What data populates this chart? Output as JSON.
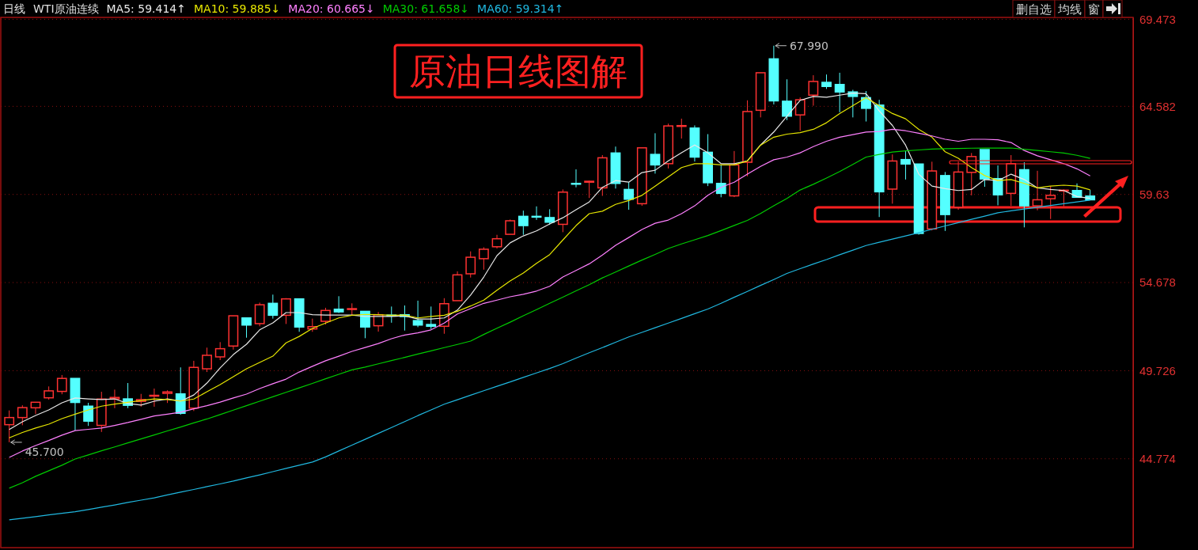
{
  "chart_data": {
    "type": "candlestick",
    "title": "WTI原油连续",
    "subtitle": "日线",
    "categories": [
      null,
      null,
      null,
      null,
      null,
      null,
      null,
      null,
      null,
      null,
      null,
      null,
      null,
      null,
      null,
      null,
      null,
      null,
      null,
      null,
      null,
      null,
      null,
      null,
      null,
      null,
      null,
      null,
      null,
      null,
      null,
      null,
      null,
      null,
      null,
      null,
      null,
      null,
      null,
      null,
      null,
      null,
      null,
      null,
      null,
      null,
      null,
      null,
      null,
      null,
      null,
      null,
      null,
      null,
      null,
      null,
      null,
      null,
      null,
      null,
      null,
      null,
      null,
      null,
      null,
      null,
      null,
      null,
      null,
      null,
      null,
      null,
      null,
      null,
      null,
      null,
      null,
      null,
      null,
      null,
      null,
      null,
      null
    ],
    "ohlc": [
      [
        46.69,
        47.49,
        45.7,
        47.09
      ],
      [
        47.09,
        47.78,
        46.66,
        47.65
      ],
      [
        47.64,
        47.95,
        47.29,
        47.95
      ],
      [
        48.2,
        48.84,
        48.1,
        48.59
      ],
      [
        48.56,
        49.48,
        48.4,
        49.29
      ],
      [
        49.29,
        49.29,
        46.37,
        47.94
      ],
      [
        47.73,
        47.92,
        46.62,
        46.89
      ],
      [
        46.65,
        48.54,
        46.28,
        48.13
      ],
      [
        48.14,
        48.66,
        47.62,
        48.22
      ],
      [
        48.14,
        49.03,
        47.62,
        47.78
      ],
      [
        48.0,
        48.42,
        47.7,
        48.1
      ],
      [
        48.3,
        48.72,
        47.7,
        48.34
      ],
      [
        48.45,
        48.62,
        47.91,
        48.53
      ],
      [
        48.42,
        49.91,
        47.25,
        47.33
      ],
      [
        47.62,
        50.28,
        47.46,
        49.91
      ],
      [
        49.83,
        51.02,
        49.65,
        50.59
      ],
      [
        50.5,
        51.33,
        50.32,
        50.96
      ],
      [
        51.11,
        52.81,
        50.91,
        52.81
      ],
      [
        52.69,
        52.69,
        51.58,
        52.29
      ],
      [
        52.37,
        53.55,
        52.22,
        53.43
      ],
      [
        53.51,
        54.0,
        52.65,
        52.84
      ],
      [
        52.84,
        53.8,
        52.35,
        53.76
      ],
      [
        53.76,
        53.76,
        51.91,
        52.18
      ],
      [
        52.07,
        52.65,
        51.91,
        52.2
      ],
      [
        52.5,
        53.26,
        52.32,
        53.11
      ],
      [
        53.18,
        53.91,
        52.96,
        53.03
      ],
      [
        53.17,
        53.51,
        52.84,
        53.21
      ],
      [
        53.06,
        53.06,
        51.55,
        52.18
      ],
      [
        52.25,
        53.02,
        51.92,
        52.87
      ],
      [
        52.85,
        53.33,
        52.42,
        52.81
      ],
      [
        52.87,
        53.39,
        51.98,
        52.77
      ],
      [
        52.54,
        53.66,
        52.17,
        52.29
      ],
      [
        52.32,
        53.33,
        52.06,
        52.22
      ],
      [
        52.22,
        53.8,
        51.8,
        53.49
      ],
      [
        53.66,
        55.31,
        53.66,
        55.11
      ],
      [
        55.17,
        56.43,
        54.96,
        56.1
      ],
      [
        56.02,
        56.66,
        55.4,
        56.55
      ],
      [
        56.69,
        57.36,
        56.59,
        57.14
      ],
      [
        57.39,
        58.22,
        57.39,
        58.15
      ],
      [
        58.4,
        58.72,
        57.36,
        57.88
      ],
      [
        58.4,
        58.96,
        58.2,
        58.37
      ],
      [
        58.33,
        58.8,
        57.92,
        58.07
      ],
      [
        57.95,
        59.91,
        57.51,
        59.76
      ],
      [
        60.25,
        61.04,
        60.03,
        60.22
      ],
      [
        60.32,
        60.4,
        59.43,
        60.37
      ],
      [
        60.0,
        61.84,
        59.55,
        61.69
      ],
      [
        61.96,
        62.32,
        59.96,
        60.25
      ],
      [
        59.91,
        60.32,
        58.77,
        59.36
      ],
      [
        59.11,
        62.25,
        58.99,
        62.25
      ],
      [
        61.88,
        63.07,
        60.8,
        61.29
      ],
      [
        61.36,
        63.61,
        61.09,
        63.48
      ],
      [
        63.46,
        63.89,
        62.77,
        63.5
      ],
      [
        63.36,
        63.51,
        61.48,
        61.73
      ],
      [
        62.0,
        63.02,
        60.1,
        60.29
      ],
      [
        60.25,
        61.29,
        59.47,
        59.69
      ],
      [
        59.55,
        62.07,
        59.48,
        61.29
      ],
      [
        61.44,
        64.92,
        60.65,
        64.29
      ],
      [
        64.36,
        66.47,
        63.96,
        66.47
      ],
      [
        67.25,
        67.99,
        64.69,
        64.89
      ],
      [
        64.87,
        66.1,
        63.81,
        64.03
      ],
      [
        64.1,
        65.08,
        63.21,
        64.95
      ],
      [
        65.21,
        66.33,
        64.62,
        65.98
      ],
      [
        65.93,
        66.37,
        65.56,
        65.7
      ],
      [
        65.81,
        66.47,
        64.25,
        65.39
      ],
      [
        65.39,
        65.51,
        63.96,
        65.14
      ],
      [
        65.07,
        65.44,
        63.73,
        64.47
      ],
      [
        64.65,
        64.95,
        58.36,
        59.78
      ],
      [
        59.93,
        61.88,
        59.11,
        61.51
      ],
      [
        61.59,
        62.11,
        60.47,
        61.34
      ],
      [
        61.34,
        61.34,
        57.37,
        57.44
      ],
      [
        57.69,
        61.47,
        57.61,
        60.95
      ],
      [
        60.69,
        60.89,
        57.58,
        58.5
      ],
      [
        58.91,
        61.48,
        58.77,
        60.89
      ],
      [
        60.87,
        61.96,
        59.58,
        61.76
      ],
      [
        62.15,
        62.15,
        60.06,
        60.5
      ],
      [
        60.52,
        61.26,
        59.02,
        59.61
      ],
      [
        59.69,
        61.84,
        58.99,
        61.36
      ],
      [
        61.02,
        61.44,
        57.78,
        58.99
      ],
      [
        58.99,
        60.96,
        58.74,
        59.33
      ],
      [
        59.39,
        60.1,
        58.25,
        59.58
      ],
      [
        59.83,
        59.91,
        58.96,
        59.87
      ],
      [
        59.85,
        60.25,
        59.47,
        59.47
      ],
      [
        59.54,
        59.88,
        59.33,
        59.33
      ]
    ],
    "colors": [
      "#ff3232",
      "#ff3232",
      "#ff3232",
      "#ff3232",
      "#ff3232",
      "#54ffff",
      "#54ffff",
      "#ff3232",
      "#ff3232",
      "#54ffff",
      "#ff3232",
      "#ff3232",
      "#ff3232",
      "#54ffff",
      "#ff3232",
      "#ff3232",
      "#ff3232",
      "#ff3232",
      "#54ffff",
      "#ff3232",
      "#54ffff",
      "#ff3232",
      "#54ffff",
      "#ff3232",
      "#ff3232",
      "#54ffff",
      "#ff3232",
      "#54ffff",
      "#ff3232",
      "#54ffff",
      "#54ffff",
      "#54ffff",
      "#54ffff",
      "#ff3232",
      "#ff3232",
      "#ff3232",
      "#ff3232",
      "#ff3232",
      "#ff3232",
      "#54ffff",
      "#54ffff",
      "#54ffff",
      "#ff3232",
      "#54ffff",
      "#ff3232",
      "#ff3232",
      "#54ffff",
      "#54ffff",
      "#ff3232",
      "#54ffff",
      "#ff3232",
      "#ff3232",
      "#54ffff",
      "#54ffff",
      "#54ffff",
      "#ff3232",
      "#ff3232",
      "#ff3232",
      "#54ffff",
      "#54ffff",
      "#ff3232",
      "#ff3232",
      "#54ffff",
      "#54ffff",
      "#54ffff",
      "#54ffff",
      "#54ffff",
      "#ff3232",
      "#54ffff",
      "#54ffff",
      "#ff3232",
      "#54ffff",
      "#ff3232",
      "#ff3232",
      "#54ffff",
      "#54ffff",
      "#ff3232",
      "#54ffff",
      "#ff3232",
      "#ff3232",
      "#ff3232",
      "#54ffff",
      "#54ffff"
    ],
    "series": [
      {
        "name": "MA5: 59.414↑",
        "type": "line",
        "color": "#e8e8e8",
        "values": [
          46.42,
          46.85,
          47.21,
          47.52,
          47.92,
          48.19,
          48.14,
          48.1,
          48.14,
          47.88,
          47.79,
          48.01,
          48.14,
          48.01,
          48.36,
          49.03,
          49.88,
          50.63,
          51.21,
          52.02,
          52.41,
          52.99,
          52.99,
          52.87,
          52.85,
          52.85,
          52.85,
          52.77,
          52.77,
          52.77,
          52.81,
          52.63,
          52.63,
          52.69,
          53.13,
          53.97,
          54.99,
          56.19,
          56.91,
          57.3,
          57.58,
          57.97,
          58.32,
          58.77,
          59.21,
          60.03,
          60.41,
          60.32,
          60.86,
          60.99,
          61.52,
          61.97,
          62.41,
          61.97,
          61.36,
          61.36,
          61.52,
          62.41,
          63.14,
          64.03,
          64.92,
          65.14,
          65.09,
          65.21,
          65.33,
          65.29,
          64.33,
          63.51,
          62.4,
          60.77,
          60.1,
          59.96,
          59.85,
          59.91,
          60.47,
          60.41,
          60.77,
          60.47,
          60.0,
          59.91,
          59.85,
          59.51,
          59.41
        ]
      },
      {
        "name": "MA10: 59.885↓",
        "type": "line",
        "color": "#e6e600",
        "values": [
          45.95,
          46.25,
          46.5,
          46.72,
          47.03,
          47.28,
          47.52,
          47.73,
          47.85,
          47.95,
          48.05,
          48.14,
          48.1,
          48.02,
          48.13,
          48.54,
          48.94,
          49.39,
          49.83,
          50.19,
          50.54,
          51.29,
          51.65,
          52.1,
          52.4,
          52.69,
          52.84,
          52.89,
          52.87,
          52.84,
          52.85,
          52.69,
          52.77,
          52.84,
          53.06,
          53.36,
          53.69,
          54.25,
          54.77,
          55.21,
          55.76,
          56.25,
          57.07,
          57.88,
          58.55,
          58.69,
          59.07,
          59.29,
          59.58,
          60.1,
          60.62,
          61.14,
          61.36,
          61.36,
          61.29,
          61.29,
          61.51,
          62.4,
          62.85,
          63.02,
          63.1,
          63.29,
          63.66,
          64.18,
          64.62,
          65.07,
          64.62,
          64.18,
          63.88,
          63.29,
          62.85,
          62.03,
          61.66,
          61.14,
          60.69,
          60.41,
          60.47,
          60.25,
          60.0,
          60.1,
          60.15,
          60.1,
          59.89
        ]
      },
      {
        "name": "MA20: 60.665↓",
        "type": "line",
        "color": "#ff80ff",
        "values": [
          44.85,
          45.21,
          45.52,
          45.8,
          46.1,
          46.36,
          46.43,
          46.5,
          46.65,
          46.81,
          46.99,
          47.18,
          47.28,
          47.39,
          47.58,
          47.76,
          47.96,
          48.19,
          48.41,
          48.72,
          48.99,
          49.25,
          49.65,
          49.97,
          50.28,
          50.54,
          50.81,
          51.03,
          51.25,
          51.52,
          51.73,
          51.85,
          52.02,
          52.4,
          52.91,
          53.21,
          53.51,
          53.69,
          53.88,
          54.02,
          54.2,
          54.47,
          54.99,
          55.36,
          55.73,
          56.23,
          56.77,
          57.21,
          57.66,
          58.01,
          58.19,
          58.55,
          58.99,
          59.58,
          60.03,
          60.32,
          60.77,
          61.21,
          61.58,
          61.73,
          61.97,
          62.32,
          62.62,
          62.85,
          62.99,
          63.14,
          63.17,
          63.29,
          63.21,
          63.07,
          62.92,
          62.73,
          62.62,
          62.73,
          62.73,
          62.7,
          62.55,
          62.1,
          61.8,
          61.58,
          61.36,
          61.07,
          60.67
        ]
      },
      {
        "name": "MA30: 61.658↓",
        "type": "line",
        "color": "#00cc00",
        "values": [
          43.12,
          43.43,
          43.79,
          44.1,
          44.41,
          44.76,
          44.99,
          45.22,
          45.44,
          45.67,
          45.89,
          46.11,
          46.34,
          46.56,
          46.79,
          47.01,
          47.26,
          47.51,
          47.76,
          48.01,
          48.26,
          48.51,
          48.76,
          49.01,
          49.27,
          49.52,
          49.77,
          49.93,
          50.11,
          50.29,
          50.47,
          50.66,
          50.84,
          51.02,
          51.2,
          51.39,
          51.76,
          52.11,
          52.45,
          52.81,
          53.16,
          53.51,
          53.86,
          54.21,
          54.56,
          54.94,
          55.27,
          55.61,
          55.94,
          56.26,
          56.59,
          56.85,
          57.08,
          57.32,
          57.6,
          57.89,
          58.17,
          58.56,
          58.99,
          59.41,
          59.88,
          60.2,
          60.55,
          60.92,
          61.32,
          61.73,
          61.88,
          62.01,
          62.08,
          62.13,
          62.18,
          62.2,
          62.21,
          62.23,
          62.24,
          62.24,
          62.24,
          62.17,
          62.1,
          62.03,
          61.96,
          61.83,
          61.66
        ]
      },
      {
        "name": "MA60: 59.314↑",
        "type": "line",
        "color": "#20b8e0",
        "values": [
          41.34,
          41.43,
          41.52,
          41.62,
          41.71,
          41.8,
          41.92,
          42.05,
          42.18,
          42.32,
          42.45,
          42.58,
          42.74,
          42.9,
          43.05,
          43.21,
          43.36,
          43.52,
          43.7,
          43.87,
          44.05,
          44.23,
          44.41,
          44.59,
          44.88,
          45.21,
          45.54,
          45.87,
          46.2,
          46.53,
          46.86,
          47.2,
          47.52,
          47.84,
          48.09,
          48.35,
          48.6,
          48.85,
          49.09,
          49.35,
          49.6,
          49.85,
          50.12,
          50.43,
          50.73,
          51.02,
          51.32,
          51.62,
          51.88,
          52.14,
          52.4,
          52.66,
          52.93,
          53.19,
          53.51,
          53.85,
          54.18,
          54.52,
          54.85,
          55.19,
          55.46,
          55.72,
          55.97,
          56.24,
          56.5,
          56.76,
          56.94,
          57.12,
          57.3,
          57.48,
          57.67,
          57.86,
          58.04,
          58.23,
          58.41,
          58.6,
          58.71,
          58.81,
          58.91,
          59.01,
          59.11,
          59.21,
          59.31
        ]
      }
    ],
    "ylim": [
      39.78,
      69.58
    ],
    "yticks": [
      44.774,
      49.726,
      54.678,
      59.63,
      64.582,
      69.473
    ],
    "grid": "y",
    "legend": "top left",
    "tick_labels": "y",
    "annotations": [
      "原油日线图解",
      "删自选",
      "均线",
      "窗",
      "45.700",
      "67.990"
    ]
  }
}
